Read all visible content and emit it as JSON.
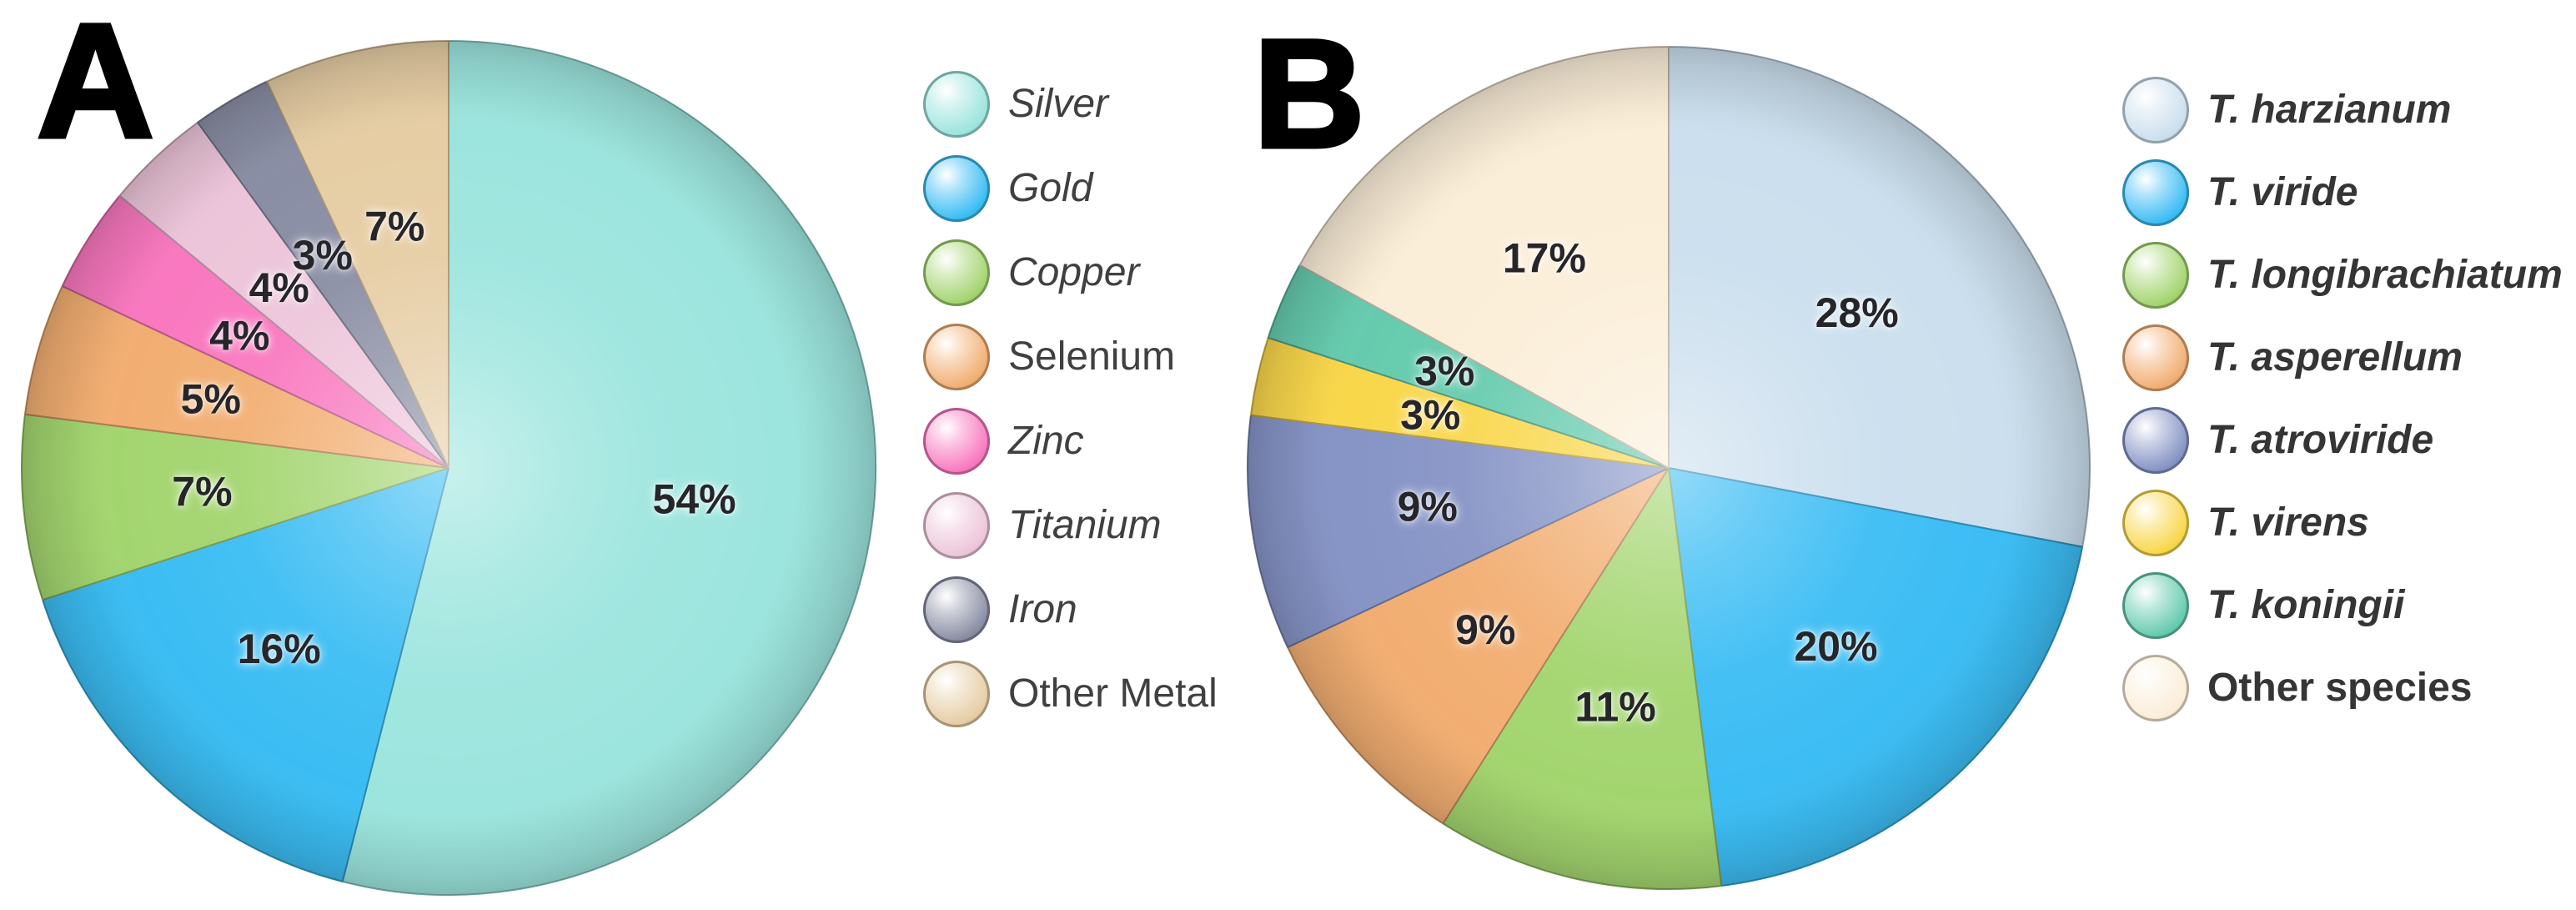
{
  "figure": {
    "background": "#ffffff"
  },
  "chart_data": [
    {
      "type": "pie",
      "panel_label": "A",
      "title": "",
      "categories": [
        "Silver",
        "Gold",
        "Copper",
        "Selenium",
        "Zinc",
        "Titanium",
        "Iron",
        "Other Metal"
      ],
      "values": [
        54,
        16,
        7,
        5,
        4,
        4,
        3,
        7
      ],
      "unit": "%",
      "value_labels": [
        "54%",
        "16%",
        "7%",
        "5%",
        "4%",
        "4%",
        "3%",
        "7%"
      ],
      "colors": [
        "#9ce5de",
        "#3bbdf3",
        "#a3d56f",
        "#f2ae72",
        "#f978bf",
        "#edc5da",
        "#8a8ea4",
        "#e6cda4"
      ],
      "legend_italic": [
        true,
        true,
        true,
        false,
        true,
        true,
        true,
        false
      ],
      "legend_bold": false,
      "start_angle_deg": 0,
      "direction": "clockwise",
      "legend_position": "right",
      "value_label_color": "#26262a",
      "legend_text_color": "#404040"
    },
    {
      "type": "pie",
      "panel_label": "B",
      "title": "",
      "categories": [
        "T. harzianum",
        "T. viride",
        "T. longibrachiatum",
        "T. asperellum",
        "T. atroviride",
        "T. virens",
        "T. koningii",
        "Other species"
      ],
      "values": [
        28,
        20,
        11,
        9,
        9,
        3,
        3,
        17
      ],
      "unit": "%",
      "value_labels": [
        "28%",
        "20%",
        "11%",
        "9%",
        "9%",
        "3%",
        "3%",
        "17%"
      ],
      "colors": [
        "#cbdfee",
        "#3cbdf4",
        "#a3d56f",
        "#f2ae72",
        "#8694c6",
        "#f9d74b",
        "#66cbae",
        "#fbeed8"
      ],
      "legend_italic": [
        true,
        true,
        true,
        true,
        true,
        true,
        true,
        false
      ],
      "legend_bold": true,
      "start_angle_deg": 0,
      "direction": "clockwise",
      "legend_position": "right",
      "value_label_color": "#26262a",
      "legend_text_color": "#353535"
    }
  ]
}
